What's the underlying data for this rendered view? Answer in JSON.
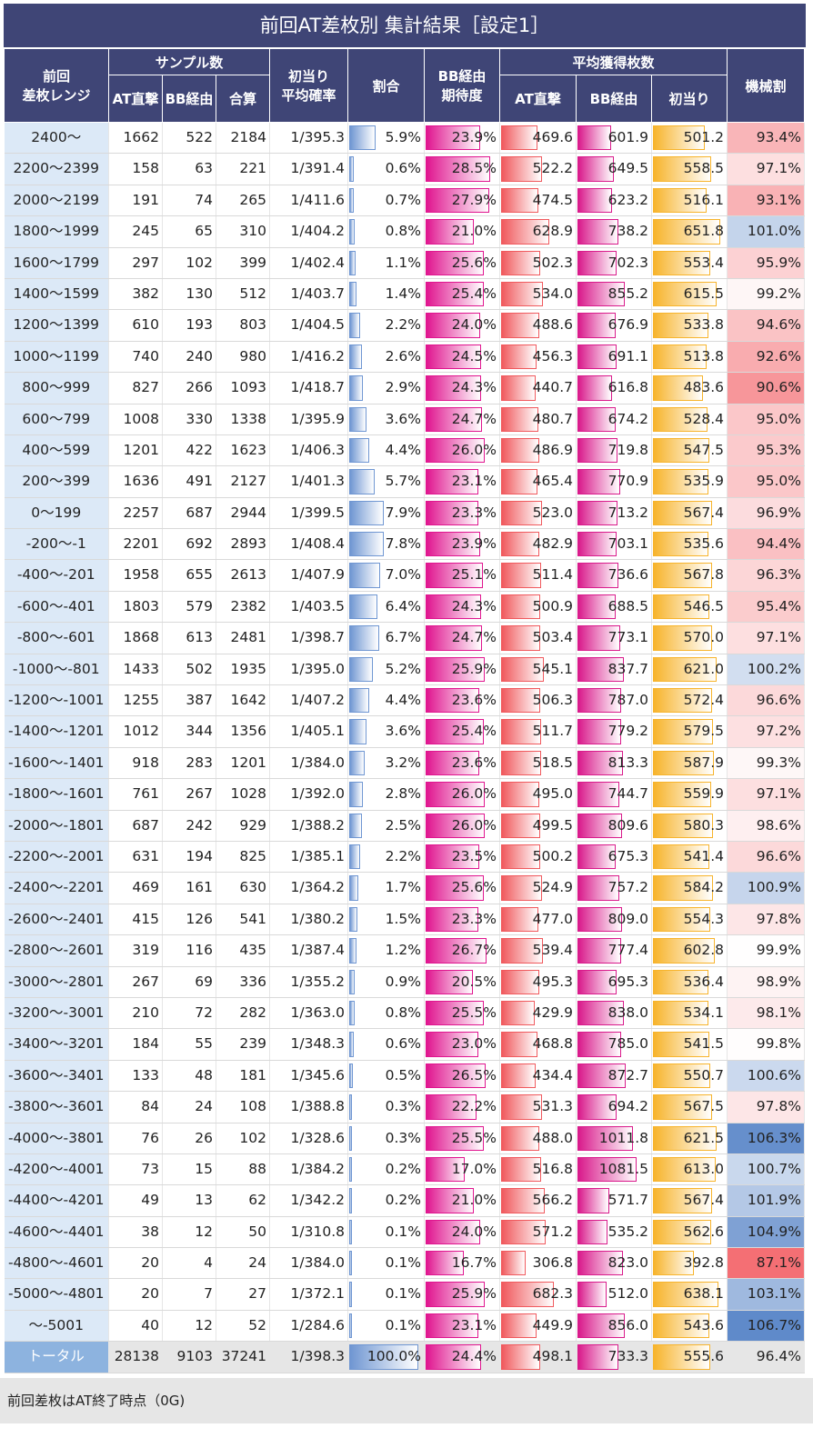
{
  "title": "前回AT差枚別 集計結果［設定1］",
  "header": {
    "range_l1": "前回",
    "range_l2": "差枚レンジ",
    "sample": "サンプル数",
    "at": "AT直撃",
    "bb": "BB経由",
    "sum": "合算",
    "prob_l1": "初当り",
    "prob_l2": "平均確率",
    "ratio": "割合",
    "bbexp_l1": "BB経由",
    "bbexp_l2": "期待度",
    "avg": "平均獲得枚数",
    "avg_at": "AT直撃",
    "avg_bb": "BB経由",
    "avg_first": "初当り",
    "payout": "機械割"
  },
  "colors": {
    "header_bg": "#3f4576",
    "range_bg": "#dce9f7",
    "ratio_bar": "#6f96d2",
    "bbexp_bar": "#e0158f",
    "at_bar": "#f0595d",
    "bb_bar": "#d91a8b",
    "first_bar": "#f7b42c",
    "payout_high": "#5a86c8",
    "payout_low": "#f2545a"
  },
  "rows": [
    {
      "range": "2400～",
      "at": "1662",
      "bb": "522",
      "sum": "2184",
      "prob": "1/395.3",
      "ratio": "5.9%",
      "bbexp": "23.9%",
      "avg_at": "469.6",
      "avg_bb": "601.9",
      "avg_first": "501.2",
      "payout": "93.4%"
    },
    {
      "range": "2200～2399",
      "at": "158",
      "bb": "63",
      "sum": "221",
      "prob": "1/391.4",
      "ratio": "0.6%",
      "bbexp": "28.5%",
      "avg_at": "522.2",
      "avg_bb": "649.5",
      "avg_first": "558.5",
      "payout": "97.1%"
    },
    {
      "range": "2000～2199",
      "at": "191",
      "bb": "74",
      "sum": "265",
      "prob": "1/411.6",
      "ratio": "0.7%",
      "bbexp": "27.9%",
      "avg_at": "474.5",
      "avg_bb": "623.2",
      "avg_first": "516.1",
      "payout": "93.1%"
    },
    {
      "range": "1800～1999",
      "at": "245",
      "bb": "65",
      "sum": "310",
      "prob": "1/404.2",
      "ratio": "0.8%",
      "bbexp": "21.0%",
      "avg_at": "628.9",
      "avg_bb": "738.2",
      "avg_first": "651.8",
      "payout": "101.0%"
    },
    {
      "range": "1600～1799",
      "at": "297",
      "bb": "102",
      "sum": "399",
      "prob": "1/402.4",
      "ratio": "1.1%",
      "bbexp": "25.6%",
      "avg_at": "502.3",
      "avg_bb": "702.3",
      "avg_first": "553.4",
      "payout": "95.9%"
    },
    {
      "range": "1400～1599",
      "at": "382",
      "bb": "130",
      "sum": "512",
      "prob": "1/403.7",
      "ratio": "1.4%",
      "bbexp": "25.4%",
      "avg_at": "534.0",
      "avg_bb": "855.2",
      "avg_first": "615.5",
      "payout": "99.2%"
    },
    {
      "range": "1200～1399",
      "at": "610",
      "bb": "193",
      "sum": "803",
      "prob": "1/404.5",
      "ratio": "2.2%",
      "bbexp": "24.0%",
      "avg_at": "488.6",
      "avg_bb": "676.9",
      "avg_first": "533.8",
      "payout": "94.6%"
    },
    {
      "range": "1000～1199",
      "at": "740",
      "bb": "240",
      "sum": "980",
      "prob": "1/416.2",
      "ratio": "2.6%",
      "bbexp": "24.5%",
      "avg_at": "456.3",
      "avg_bb": "691.1",
      "avg_first": "513.8",
      "payout": "92.6%"
    },
    {
      "range": "800～999",
      "at": "827",
      "bb": "266",
      "sum": "1093",
      "prob": "1/418.7",
      "ratio": "2.9%",
      "bbexp": "24.3%",
      "avg_at": "440.7",
      "avg_bb": "616.8",
      "avg_first": "483.6",
      "payout": "90.6%"
    },
    {
      "range": "600～799",
      "at": "1008",
      "bb": "330",
      "sum": "1338",
      "prob": "1/395.9",
      "ratio": "3.6%",
      "bbexp": "24.7%",
      "avg_at": "480.7",
      "avg_bb": "674.2",
      "avg_first": "528.4",
      "payout": "95.0%"
    },
    {
      "range": "400～599",
      "at": "1201",
      "bb": "422",
      "sum": "1623",
      "prob": "1/406.3",
      "ratio": "4.4%",
      "bbexp": "26.0%",
      "avg_at": "486.9",
      "avg_bb": "719.8",
      "avg_first": "547.5",
      "payout": "95.3%"
    },
    {
      "range": "200～399",
      "at": "1636",
      "bb": "491",
      "sum": "2127",
      "prob": "1/401.3",
      "ratio": "5.7%",
      "bbexp": "23.1%",
      "avg_at": "465.4",
      "avg_bb": "770.9",
      "avg_first": "535.9",
      "payout": "95.0%"
    },
    {
      "range": "0～199",
      "at": "2257",
      "bb": "687",
      "sum": "2944",
      "prob": "1/399.5",
      "ratio": "7.9%",
      "bbexp": "23.3%",
      "avg_at": "523.0",
      "avg_bb": "713.2",
      "avg_first": "567.4",
      "payout": "96.9%"
    },
    {
      "range": "-200～-1",
      "at": "2201",
      "bb": "692",
      "sum": "2893",
      "prob": "1/408.4",
      "ratio": "7.8%",
      "bbexp": "23.9%",
      "avg_at": "482.9",
      "avg_bb": "703.1",
      "avg_first": "535.6",
      "payout": "94.4%"
    },
    {
      "range": "-400～-201",
      "at": "1958",
      "bb": "655",
      "sum": "2613",
      "prob": "1/407.9",
      "ratio": "7.0%",
      "bbexp": "25.1%",
      "avg_at": "511.4",
      "avg_bb": "736.6",
      "avg_first": "567.8",
      "payout": "96.3%"
    },
    {
      "range": "-600～-401",
      "at": "1803",
      "bb": "579",
      "sum": "2382",
      "prob": "1/403.5",
      "ratio": "6.4%",
      "bbexp": "24.3%",
      "avg_at": "500.9",
      "avg_bb": "688.5",
      "avg_first": "546.5",
      "payout": "95.4%"
    },
    {
      "range": "-800～-601",
      "at": "1868",
      "bb": "613",
      "sum": "2481",
      "prob": "1/398.7",
      "ratio": "6.7%",
      "bbexp": "24.7%",
      "avg_at": "503.4",
      "avg_bb": "773.1",
      "avg_first": "570.0",
      "payout": "97.1%"
    },
    {
      "range": "-1000～-801",
      "at": "1433",
      "bb": "502",
      "sum": "1935",
      "prob": "1/395.0",
      "ratio": "5.2%",
      "bbexp": "25.9%",
      "avg_at": "545.1",
      "avg_bb": "837.7",
      "avg_first": "621.0",
      "payout": "100.2%"
    },
    {
      "range": "-1200～-1001",
      "at": "1255",
      "bb": "387",
      "sum": "1642",
      "prob": "1/407.2",
      "ratio": "4.4%",
      "bbexp": "23.6%",
      "avg_at": "506.3",
      "avg_bb": "787.0",
      "avg_first": "572.4",
      "payout": "96.6%"
    },
    {
      "range": "-1400～-1201",
      "at": "1012",
      "bb": "344",
      "sum": "1356",
      "prob": "1/405.1",
      "ratio": "3.6%",
      "bbexp": "25.4%",
      "avg_at": "511.7",
      "avg_bb": "779.2",
      "avg_first": "579.5",
      "payout": "97.2%"
    },
    {
      "range": "-1600～-1401",
      "at": "918",
      "bb": "283",
      "sum": "1201",
      "prob": "1/384.0",
      "ratio": "3.2%",
      "bbexp": "23.6%",
      "avg_at": "518.5",
      "avg_bb": "813.3",
      "avg_first": "587.9",
      "payout": "99.3%"
    },
    {
      "range": "-1800～-1601",
      "at": "761",
      "bb": "267",
      "sum": "1028",
      "prob": "1/392.0",
      "ratio": "2.8%",
      "bbexp": "26.0%",
      "avg_at": "495.0",
      "avg_bb": "744.7",
      "avg_first": "559.9",
      "payout": "97.1%"
    },
    {
      "range": "-2000～-1801",
      "at": "687",
      "bb": "242",
      "sum": "929",
      "prob": "1/388.2",
      "ratio": "2.5%",
      "bbexp": "26.0%",
      "avg_at": "499.5",
      "avg_bb": "809.6",
      "avg_first": "580.3",
      "payout": "98.6%"
    },
    {
      "range": "-2200～-2001",
      "at": "631",
      "bb": "194",
      "sum": "825",
      "prob": "1/385.1",
      "ratio": "2.2%",
      "bbexp": "23.5%",
      "avg_at": "500.2",
      "avg_bb": "675.3",
      "avg_first": "541.4",
      "payout": "96.6%"
    },
    {
      "range": "-2400～-2201",
      "at": "469",
      "bb": "161",
      "sum": "630",
      "prob": "1/364.2",
      "ratio": "1.7%",
      "bbexp": "25.6%",
      "avg_at": "524.9",
      "avg_bb": "757.2",
      "avg_first": "584.2",
      "payout": "100.9%"
    },
    {
      "range": "-2600～-2401",
      "at": "415",
      "bb": "126",
      "sum": "541",
      "prob": "1/380.2",
      "ratio": "1.5%",
      "bbexp": "23.3%",
      "avg_at": "477.0",
      "avg_bb": "809.0",
      "avg_first": "554.3",
      "payout": "97.8%"
    },
    {
      "range": "-2800～-2601",
      "at": "319",
      "bb": "116",
      "sum": "435",
      "prob": "1/387.4",
      "ratio": "1.2%",
      "bbexp": "26.7%",
      "avg_at": "539.4",
      "avg_bb": "777.4",
      "avg_first": "602.8",
      "payout": "99.9%"
    },
    {
      "range": "-3000～-2801",
      "at": "267",
      "bb": "69",
      "sum": "336",
      "prob": "1/355.2",
      "ratio": "0.9%",
      "bbexp": "20.5%",
      "avg_at": "495.3",
      "avg_bb": "695.3",
      "avg_first": "536.4",
      "payout": "98.9%"
    },
    {
      "range": "-3200～-3001",
      "at": "210",
      "bb": "72",
      "sum": "282",
      "prob": "1/363.0",
      "ratio": "0.8%",
      "bbexp": "25.5%",
      "avg_at": "429.9",
      "avg_bb": "838.0",
      "avg_first": "534.1",
      "payout": "98.1%"
    },
    {
      "range": "-3400～-3201",
      "at": "184",
      "bb": "55",
      "sum": "239",
      "prob": "1/348.3",
      "ratio": "0.6%",
      "bbexp": "23.0%",
      "avg_at": "468.8",
      "avg_bb": "785.0",
      "avg_first": "541.5",
      "payout": "99.8%"
    },
    {
      "range": "-3600～-3401",
      "at": "133",
      "bb": "48",
      "sum": "181",
      "prob": "1/345.6",
      "ratio": "0.5%",
      "bbexp": "26.5%",
      "avg_at": "434.4",
      "avg_bb": "872.7",
      "avg_first": "550.7",
      "payout": "100.6%"
    },
    {
      "range": "-3800～-3601",
      "at": "84",
      "bb": "24",
      "sum": "108",
      "prob": "1/388.8",
      "ratio": "0.3%",
      "bbexp": "22.2%",
      "avg_at": "531.3",
      "avg_bb": "694.2",
      "avg_first": "567.5",
      "payout": "97.8%"
    },
    {
      "range": "-4000～-3801",
      "at": "76",
      "bb": "26",
      "sum": "102",
      "prob": "1/328.6",
      "ratio": "0.3%",
      "bbexp": "25.5%",
      "avg_at": "488.0",
      "avg_bb": "1011.8",
      "avg_first": "621.5",
      "payout": "106.3%"
    },
    {
      "range": "-4200～-4001",
      "at": "73",
      "bb": "15",
      "sum": "88",
      "prob": "1/384.2",
      "ratio": "0.2%",
      "bbexp": "17.0%",
      "avg_at": "516.8",
      "avg_bb": "1081.5",
      "avg_first": "613.0",
      "payout": "100.7%"
    },
    {
      "range": "-4400～-4201",
      "at": "49",
      "bb": "13",
      "sum": "62",
      "prob": "1/342.2",
      "ratio": "0.2%",
      "bbexp": "21.0%",
      "avg_at": "566.2",
      "avg_bb": "571.7",
      "avg_first": "567.4",
      "payout": "101.9%"
    },
    {
      "range": "-4600～-4401",
      "at": "38",
      "bb": "12",
      "sum": "50",
      "prob": "1/310.8",
      "ratio": "0.1%",
      "bbexp": "24.0%",
      "avg_at": "571.2",
      "avg_bb": "535.2",
      "avg_first": "562.6",
      "payout": "104.9%"
    },
    {
      "range": "-4800～-4601",
      "at": "20",
      "bb": "4",
      "sum": "24",
      "prob": "1/384.0",
      "ratio": "0.1%",
      "bbexp": "16.7%",
      "avg_at": "306.8",
      "avg_bb": "823.0",
      "avg_first": "392.8",
      "payout": "87.1%"
    },
    {
      "range": "-5000～-4801",
      "at": "20",
      "bb": "7",
      "sum": "27",
      "prob": "1/372.1",
      "ratio": "0.1%",
      "bbexp": "25.9%",
      "avg_at": "682.3",
      "avg_bb": "512.0",
      "avg_first": "638.1",
      "payout": "103.1%"
    },
    {
      "range": "～-5001",
      "at": "40",
      "bb": "12",
      "sum": "52",
      "prob": "1/284.6",
      "ratio": "0.1%",
      "bbexp": "23.1%",
      "avg_at": "449.9",
      "avg_bb": "856.0",
      "avg_first": "543.6",
      "payout": "106.7%"
    }
  ],
  "total": {
    "range": "トータル",
    "at": "28138",
    "bb": "9103",
    "sum": "37241",
    "prob": "1/398.3",
    "ratio": "100.0%",
    "bbexp": "24.4%",
    "avg_at": "498.1",
    "avg_bb": "733.3",
    "avg_first": "555.6",
    "payout": "96.4%"
  },
  "note": "前回差枚はAT終了時点（0G)"
}
